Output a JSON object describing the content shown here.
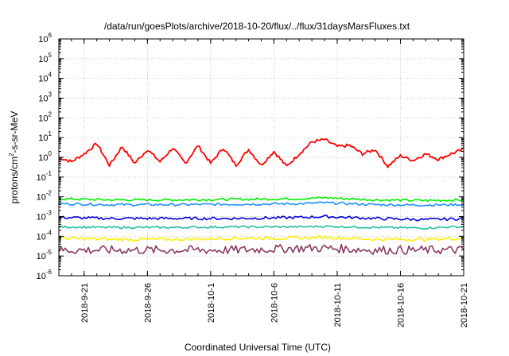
{
  "chart_data": {
    "type": "line",
    "title": "/data/run/goesPlots/archive/2018-10-20/flux/../flux/31daysMarsFluxes.txt",
    "xlabel": "Coordinated Universal Time (UTC)",
    "ylabel": {
      "prefix": "protons/cm",
      "sup": "2",
      "suffix": "-s-sr-MeV"
    },
    "yscale": "log",
    "ylim": [
      1e-06,
      1000000
    ],
    "y_ticks": [
      {
        "base": "10",
        "exp": "-6"
      },
      {
        "base": "10",
        "exp": "-5"
      },
      {
        "base": "10",
        "exp": "-4"
      },
      {
        "base": "10",
        "exp": "-3"
      },
      {
        "base": "10",
        "exp": "-2"
      },
      {
        "base": "10",
        "exp": "-1"
      },
      {
        "base": "10",
        "exp": "0"
      },
      {
        "base": "10",
        "exp": "1"
      },
      {
        "base": "10",
        "exp": "2"
      },
      {
        "base": "10",
        "exp": "3"
      },
      {
        "base": "10",
        "exp": "4"
      },
      {
        "base": "10",
        "exp": "5"
      },
      {
        "base": "10",
        "exp": "6"
      }
    ],
    "xlim": [
      "2018-09-19",
      "2018-10-21"
    ],
    "x_ticks": [
      "2018-9-21",
      "2018-9-26",
      "2018-10-1",
      "2018-10-6",
      "2018-10-11",
      "2018-10-16",
      "2018-10-21"
    ],
    "grid": true,
    "series": [
      {
        "color": "#ff0000",
        "points": [
          [
            "2018-09-19",
            1.0
          ],
          [
            "2018-09-20",
            0.6
          ],
          [
            "2018-09-21",
            1.5
          ],
          [
            "2018-09-22",
            5.0
          ],
          [
            "2018-09-23",
            0.4
          ],
          [
            "2018-09-24",
            3.5
          ],
          [
            "2018-09-25",
            0.5
          ],
          [
            "2018-09-26",
            2.5
          ],
          [
            "2018-09-27",
            0.6
          ],
          [
            "2018-09-28",
            3.0
          ],
          [
            "2018-09-29",
            0.5
          ],
          [
            "2018-09-30",
            4.0
          ],
          [
            "2018-10-01",
            0.5
          ],
          [
            "2018-10-02",
            3.0
          ],
          [
            "2018-10-03",
            0.4
          ],
          [
            "2018-10-04",
            2.5
          ],
          [
            "2018-10-05",
            0.4
          ],
          [
            "2018-10-06",
            2.0
          ],
          [
            "2018-10-07",
            0.35
          ],
          [
            "2018-10-08",
            1.5
          ],
          [
            "2018-10-09",
            6.0
          ],
          [
            "2018-10-10",
            8.0
          ],
          [
            "2018-10-11",
            3.5
          ],
          [
            "2018-10-12",
            4.0
          ],
          [
            "2018-10-13",
            1.5
          ],
          [
            "2018-10-14",
            2.5
          ],
          [
            "2018-10-15",
            0.35
          ],
          [
            "2018-10-16",
            1.2
          ],
          [
            "2018-10-17",
            0.7
          ],
          [
            "2018-10-18",
            1.5
          ],
          [
            "2018-10-19",
            0.8
          ],
          [
            "2018-10-20",
            1.5
          ],
          [
            "2018-10-21",
            2.5
          ]
        ]
      },
      {
        "color": "#00ee00",
        "points": [
          [
            "2018-09-19",
            0.008
          ],
          [
            "2018-09-23",
            0.007
          ],
          [
            "2018-09-28",
            0.007
          ],
          [
            "2018-10-03",
            0.0075
          ],
          [
            "2018-10-08",
            0.008
          ],
          [
            "2018-10-10",
            0.009
          ],
          [
            "2018-10-14",
            0.007
          ],
          [
            "2018-10-18",
            0.0065
          ],
          [
            "2018-10-21",
            0.007
          ]
        ]
      },
      {
        "color": "#1e90ff",
        "points": [
          [
            "2018-09-19",
            0.0045
          ],
          [
            "2018-09-23",
            0.004
          ],
          [
            "2018-09-28",
            0.004
          ],
          [
            "2018-10-03",
            0.0042
          ],
          [
            "2018-10-08",
            0.0045
          ],
          [
            "2018-10-10",
            0.005
          ],
          [
            "2018-10-14",
            0.004
          ],
          [
            "2018-10-18",
            0.0038
          ],
          [
            "2018-10-20",
            0.004
          ],
          [
            "2018-10-21",
            0.004
          ]
        ]
      },
      {
        "color": "#0000dd",
        "points": [
          [
            "2018-09-19",
            0.0009
          ],
          [
            "2018-09-23",
            0.0008
          ],
          [
            "2018-09-28",
            0.0008
          ],
          [
            "2018-10-03",
            0.0008
          ],
          [
            "2018-10-08",
            0.0009
          ],
          [
            "2018-10-10",
            0.001
          ],
          [
            "2018-10-14",
            0.0008
          ],
          [
            "2018-10-18",
            0.0007
          ],
          [
            "2018-10-20",
            0.00075
          ],
          [
            "2018-10-21",
            0.0008
          ]
        ]
      },
      {
        "color": "#20c0a0",
        "points": [
          [
            "2018-09-19",
            0.0003
          ],
          [
            "2018-09-23",
            0.00028
          ],
          [
            "2018-09-28",
            0.00028
          ],
          [
            "2018-10-03",
            0.0003
          ],
          [
            "2018-10-08",
            0.0003
          ],
          [
            "2018-10-10",
            0.00032
          ],
          [
            "2018-10-14",
            0.00028
          ],
          [
            "2018-10-18",
            0.00026
          ],
          [
            "2018-10-20",
            0.0003
          ],
          [
            "2018-10-21",
            0.0003
          ]
        ]
      },
      {
        "color": "#ffee00",
        "points": [
          [
            "2018-09-19",
            8e-05
          ],
          [
            "2018-09-23",
            7e-05
          ],
          [
            "2018-09-28",
            7e-05
          ],
          [
            "2018-10-03",
            8e-05
          ],
          [
            "2018-10-08",
            8e-05
          ],
          [
            "2018-10-10",
            9e-05
          ],
          [
            "2018-10-14",
            7e-05
          ],
          [
            "2018-10-18",
            7e-05
          ],
          [
            "2018-10-21",
            8e-05
          ]
        ]
      },
      {
        "color": "#8b3a62",
        "points": [
          [
            "2018-09-19",
            2e-05
          ],
          [
            "2018-09-23",
            2e-05
          ],
          [
            "2018-09-28",
            2e-05
          ],
          [
            "2018-10-03",
            2e-05
          ],
          [
            "2018-10-08",
            2.5e-05
          ],
          [
            "2018-10-10",
            2.5e-05
          ],
          [
            "2018-10-14",
            2e-05
          ],
          [
            "2018-10-18",
            2e-05
          ],
          [
            "2018-10-21",
            2e-05
          ]
        ]
      }
    ]
  }
}
